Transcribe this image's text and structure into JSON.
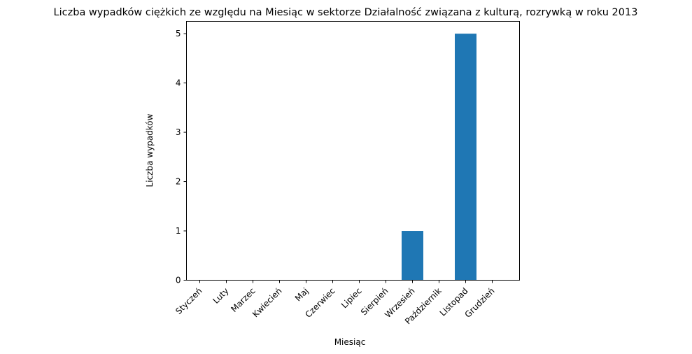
{
  "chart_data": {
    "type": "bar",
    "title": "Liczba wypadków ciężkich ze względu na Miesiąc w sektorze Działalność związana z kulturą, rozrywką  w roku 2013",
    "xlabel": "Miesiąc",
    "ylabel": "Liczba wypadków",
    "categories": [
      "Styczeń",
      "Luty",
      "Marzec",
      "Kwiecień",
      "Maj",
      "Czerwiec",
      "Lipiec",
      "Sierpień",
      "Wrzesień",
      "Październik",
      "Listopad",
      "Grudzień"
    ],
    "values": [
      0,
      0,
      0,
      0,
      0,
      0,
      0,
      0,
      1,
      0,
      5,
      0
    ],
    "ylim": [
      0,
      5.25
    ],
    "yticks": [
      0,
      1,
      2,
      3,
      4,
      5
    ],
    "grid": false,
    "bar_color": "#1f77b4"
  }
}
